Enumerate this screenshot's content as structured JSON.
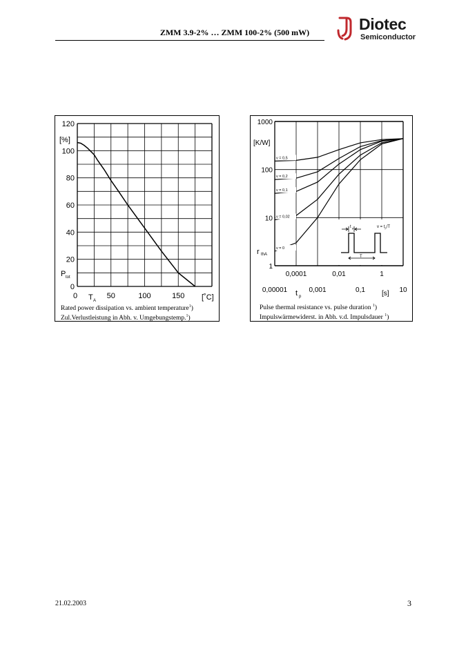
{
  "header": {
    "title": "ZMM 3.9-2% … ZMM 100-2% (500 mW)",
    "logo_text": "Diotec",
    "logo_sub": "Semiconductor",
    "logo_color": "#c0282d"
  },
  "chart_data": [
    {
      "type": "line",
      "ylabel_unit": "[%]",
      "ylabel_symbol": "P",
      "ylabel_subscript": "tot",
      "xlabel_symbol": "T",
      "xlabel_subscript": "A",
      "xlabel_unit": "[˚C]",
      "xlim": [
        0,
        200
      ],
      "ylim": [
        0,
        120
      ],
      "x_ticks": [
        "0",
        "50",
        "100",
        "150"
      ],
      "y_ticks": [
        "120",
        "100",
        "80",
        "60",
        "40",
        "20",
        "0"
      ],
      "grid": true,
      "series": [
        {
          "x": [
            0,
            5,
            10,
            15,
            20,
            25,
            30,
            40,
            50,
            60,
            75,
            100,
            125,
            150,
            175
          ],
          "y": [
            106,
            105.5,
            104,
            102,
            99.5,
            97,
            93,
            86,
            78,
            71,
            60,
            43,
            26,
            10,
            0
          ]
        }
      ],
      "caption_lines": [
        "Rated power dissipation vs. ambient temperature",
        "Zul.Verlustleistung in Abh. v. Umgebungstemp."
      ],
      "caption_footnote": "1",
      "caption_suffix": ")"
    },
    {
      "type": "line",
      "log_x": true,
      "log_y": true,
      "ylabel_unit": "[K/W]",
      "ylabel_symbol": "r",
      "ylabel_subscript": "thA",
      "xlabel_symbol": "t",
      "xlabel_subscript": "p",
      "xlabel_unit": "[s]",
      "xlim": [
        1e-05,
        10
      ],
      "ylim": [
        1,
        1000
      ],
      "y_ticks": [
        "1000",
        "100",
        "10",
        "1"
      ],
      "x_ticks_upper": [
        "0,0001",
        "0,01",
        "1"
      ],
      "x_ticks_lower": [
        "0,00001",
        "0,001",
        "0,1",
        "10"
      ],
      "grid": true,
      "inset": {
        "tp_label": "t",
        "tp_sub": "p",
        "T_label": "T",
        "v_formula_prefix": "v = t",
        "v_formula_sub": "p",
        "v_formula_suffix": "/T"
      },
      "series": [
        {
          "name": "v = 0,5",
          "x": [
            1e-05,
            0.0001,
            0.001,
            0.01,
            0.1,
            1,
            10
          ],
          "y": [
            150,
            155,
            180,
            260,
            360,
            420,
            440
          ]
        },
        {
          "name": "v = 0,2",
          "x": [
            1e-05,
            0.0001,
            0.001,
            0.01,
            0.1,
            1,
            10
          ],
          "y": [
            62,
            66,
            90,
            170,
            300,
            400,
            440
          ]
        },
        {
          "name": "v = 0,1",
          "x": [
            1e-05,
            0.0001,
            0.001,
            0.01,
            0.1,
            1,
            10
          ],
          "y": [
            32,
            35,
            55,
            130,
            260,
            390,
            440
          ]
        },
        {
          "name": "v = 0,02",
          "x": [
            1e-05,
            0.0001,
            0.001,
            0.01,
            0.1,
            1,
            10
          ],
          "y": [
            9,
            11,
            24,
            80,
            200,
            360,
            440
          ]
        },
        {
          "name": "v = 0",
          "x": [
            1e-05,
            0.0001,
            0.001,
            0.01,
            0.1,
            1,
            10
          ],
          "y": [
            2,
            3,
            10,
            50,
            160,
            340,
            440
          ]
        }
      ],
      "caption_lines": [
        "Pulse thermal resistance vs. pulse duration",
        "Impulswärmewiderst. in Abh. v.d. Impulsdauer"
      ],
      "caption_footnote": "1",
      "caption_suffix": ")"
    }
  ],
  "footer": {
    "date": "21.02.2003",
    "page": "3"
  }
}
